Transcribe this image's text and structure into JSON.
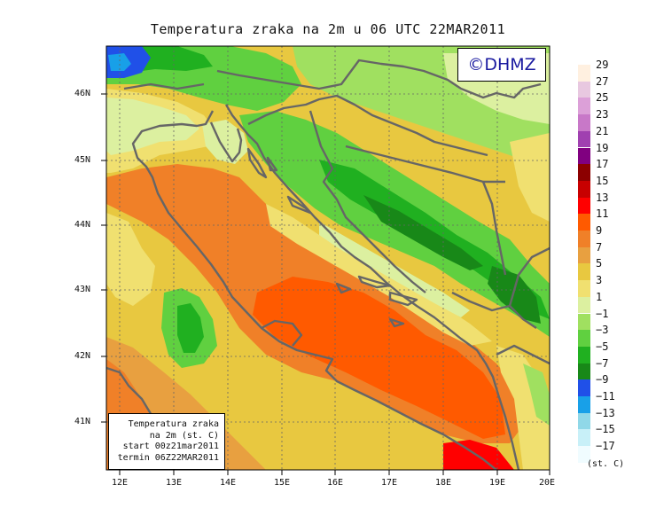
{
  "title": "Temperatura zraka na 2m u 06 UTC 22MAR2011",
  "copyright": "©DHMZ",
  "info_box": [
    "Temperatura zraka",
    "na 2m (st. C)",
    "start 00z21mar2011",
    "termin 06Z22MAR2011"
  ],
  "lat_labels": [
    "46N",
    "45N",
    "44N",
    "43N",
    "42N",
    "41N"
  ],
  "lon_labels": [
    "12E",
    "13E",
    "14E",
    "15E",
    "16E",
    "17E",
    "18E",
    "19E",
    "20E"
  ],
  "legend": {
    "labels": [
      "29",
      "27",
      "25",
      "23",
      "21",
      "19",
      "17",
      "15",
      "13",
      "11",
      "9",
      "7",
      "5",
      "3",
      "1",
      "−1",
      "−3",
      "−5",
      "−7",
      "−9",
      "−11",
      "−13",
      "−15",
      "−17"
    ],
    "colors": [
      "#fff0e0",
      "#e8c8e0",
      "#dca0d8",
      "#c878c8",
      "#a040b0",
      "#800080",
      "#8c0000",
      "#c80000",
      "#ff0000",
      "#ff5a00",
      "#f08028",
      "#e8a040",
      "#e8c840",
      "#f0e070",
      "#dcf0a0",
      "#a0e060",
      "#60d040",
      "#20b020",
      "#188818",
      "#2050e8",
      "#18a0e8",
      "#90d8e8",
      "#c8f0f8",
      "#f0fcff"
    ],
    "units": "(st. C)"
  },
  "map": {
    "region": "Adriatic Sea and surroundings",
    "lon_range": [
      11.8,
      20.0
    ],
    "lat_range": [
      40.25,
      46.75
    ],
    "field": "2 m air temperature (°C)"
  }
}
